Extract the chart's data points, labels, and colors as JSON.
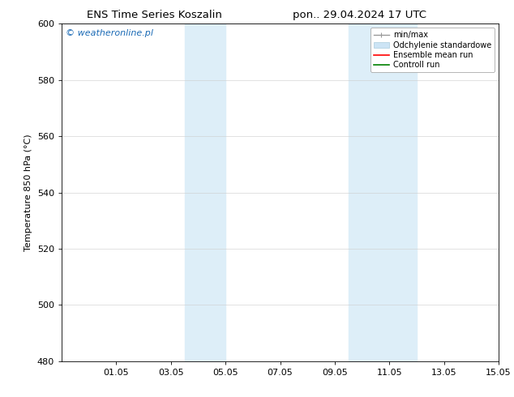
{
  "title_left": "ENS Time Series Koszalin",
  "title_right": "pon.. 29.04.2024 17 UTC",
  "ylabel": "Temperature 850 hPa (°C)",
  "ylim": [
    480,
    600
  ],
  "yticks": [
    480,
    500,
    520,
    540,
    560,
    580,
    600
  ],
  "xlim": [
    0,
    16
  ],
  "xtick_labels": [
    "01.05",
    "03.05",
    "05.05",
    "07.05",
    "09.05",
    "11.05",
    "13.05",
    "15.05"
  ],
  "xtick_positions": [
    2,
    4,
    6,
    8,
    10,
    12,
    14,
    16
  ],
  "shaded_regions": [
    {
      "x_start": 4.5,
      "x_end": 6.0,
      "color": "#ddeef8"
    },
    {
      "x_start": 10.5,
      "x_end": 13.0,
      "color": "#ddeef8"
    }
  ],
  "watermark_text": "© weatheronline.pl",
  "watermark_color": "#1a6ab5",
  "bg_color": "#ffffff",
  "plot_bg_color": "#ffffff",
  "title_fontsize": 9.5,
  "axis_label_fontsize": 8,
  "tick_fontsize": 8,
  "watermark_fontsize": 8,
  "legend_fontsize": 7
}
